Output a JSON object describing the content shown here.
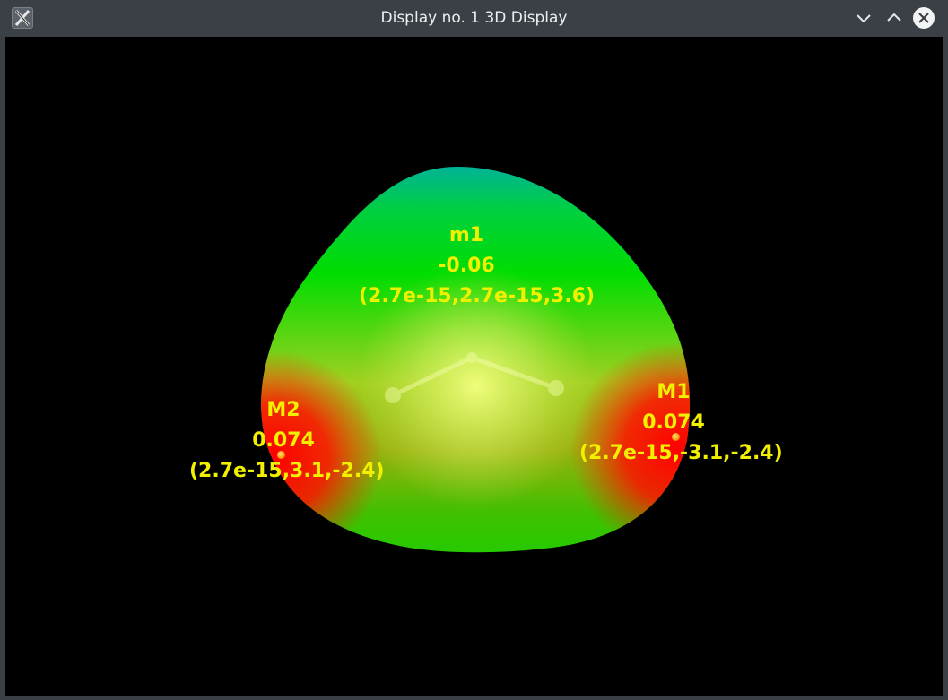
{
  "window": {
    "title": "Display no. 1 3D Display"
  },
  "icons": {
    "app": "x11-app-icon",
    "minimize": "chevron-down-icon",
    "maximize": "chevron-up-icon",
    "close": "close-icon"
  },
  "colors": {
    "label": "#f0f000",
    "background": "#000000",
    "surface_high": "#ff0000",
    "surface_mid": "#00dd00",
    "surface_low": "#00b8a0"
  },
  "markers": {
    "m1": {
      "name": "m1",
      "value": "-0.06",
      "coords": "(2.7e-15,2.7e-15,3.6)"
    },
    "M1": {
      "name": "M1",
      "value": "0.074",
      "coords": "(2.7e-15,-3.1,-2.4)"
    },
    "M2": {
      "name": "M2",
      "value": "0.074",
      "coords": "(2.7e-15,3.1,-2.4)"
    }
  }
}
